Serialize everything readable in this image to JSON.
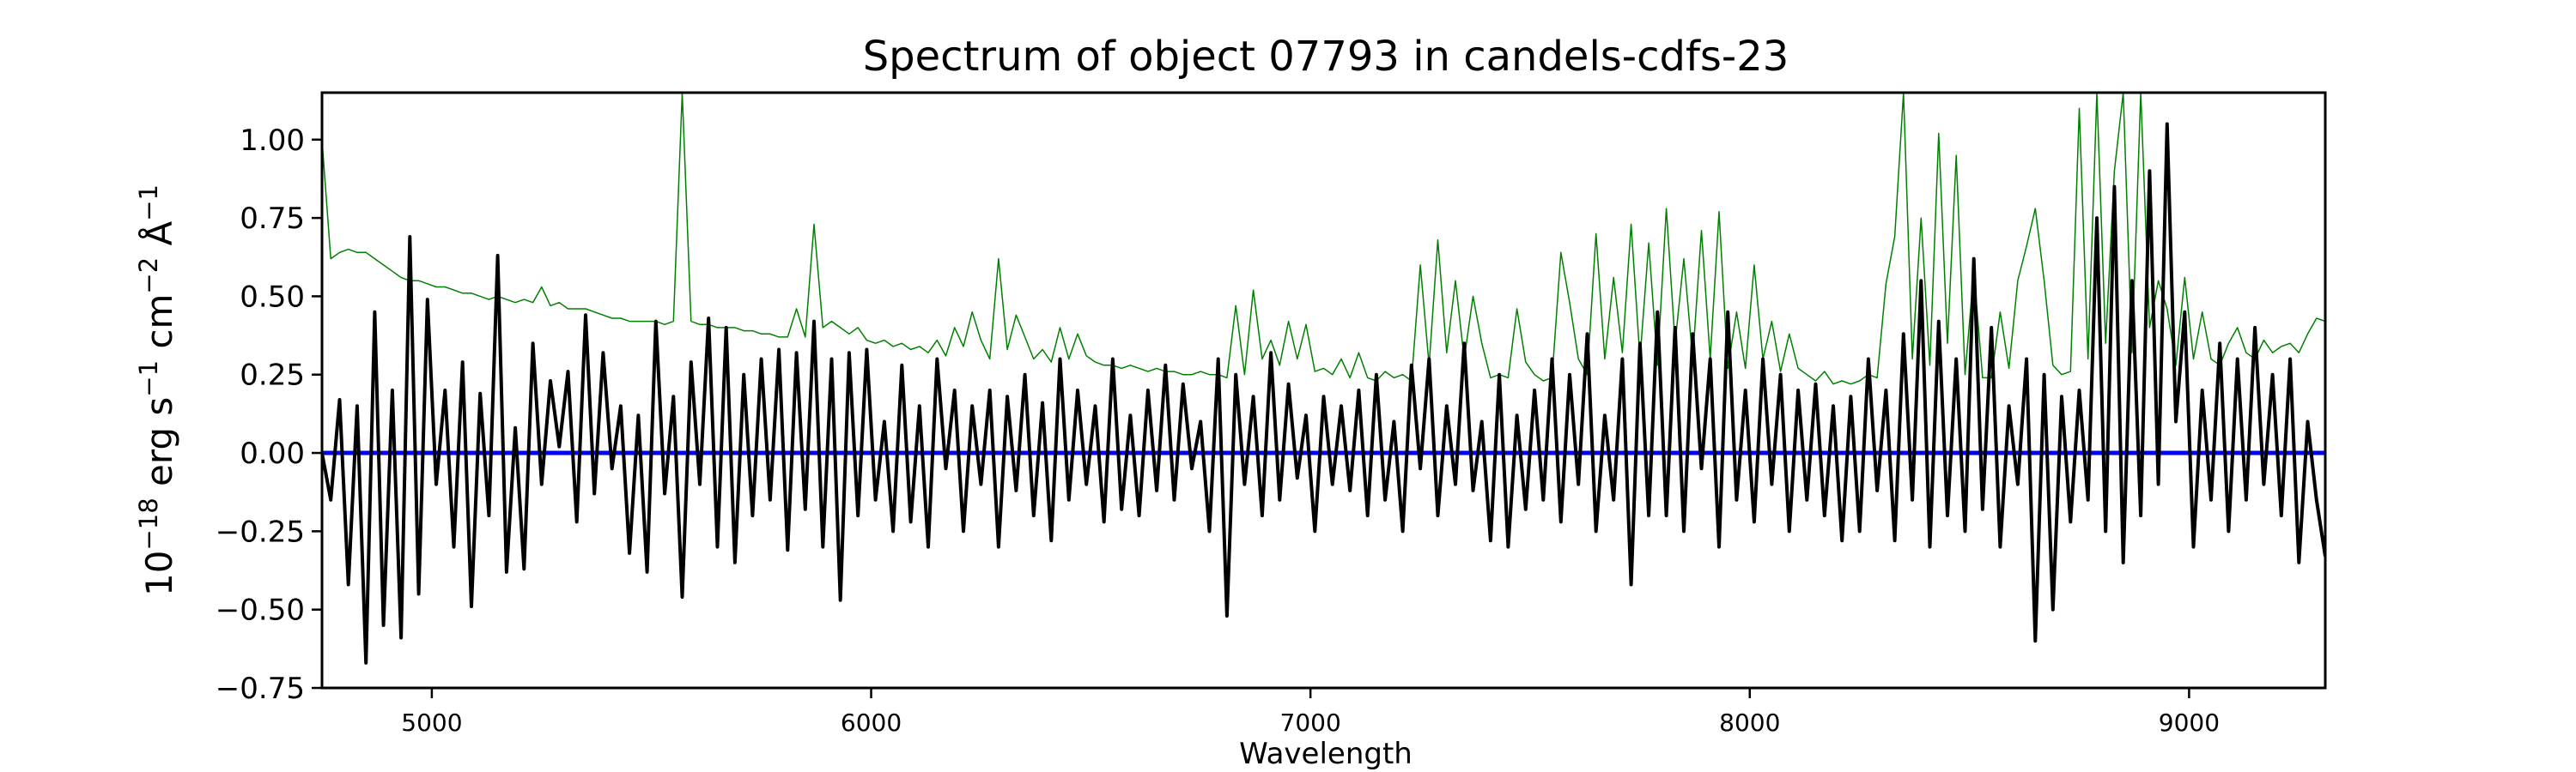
{
  "chart_data": {
    "type": "line",
    "title": "Spectrum of object 07793 in candels-cdfs-23",
    "xlabel": "Wavelength",
    "ylabel": {
      "base": "10",
      "exp": "−18",
      "parts": [
        {
          "text": " erg s",
          "sup": "−1"
        },
        {
          "text": " cm",
          "sup": "−2"
        },
        {
          "text": " Å",
          "sup": "−1"
        }
      ]
    },
    "xlim": [
      4750,
      9310
    ],
    "ylim": [
      -0.75,
      1.15
    ],
    "xticks": [
      5000,
      6000,
      7000,
      8000,
      9000
    ],
    "xtick_labels": [
      "5000",
      "6000",
      "7000",
      "8000",
      "9000"
    ],
    "yticks": [
      -0.75,
      -0.5,
      -0.25,
      0.0,
      0.25,
      0.5,
      0.75,
      1.0
    ],
    "ytick_labels": [
      "−0.75",
      "−0.50",
      "−0.25",
      "0.00",
      "0.25",
      "0.50",
      "0.75",
      "1.00"
    ],
    "grid": false,
    "colors": {
      "flux": "#000000",
      "model": "#008000",
      "zero": "#0000ff"
    },
    "zero_line": 0.0,
    "x": [
      4750,
      4770,
      4790,
      4810,
      4830,
      4850,
      4870,
      4890,
      4910,
      4930,
      4950,
      4970,
      4990,
      5010,
      5030,
      5050,
      5070,
      5090,
      5110,
      5130,
      5150,
      5170,
      5190,
      5210,
      5230,
      5250,
      5270,
      5290,
      5310,
      5330,
      5350,
      5370,
      5390,
      5410,
      5430,
      5450,
      5470,
      5490,
      5510,
      5530,
      5550,
      5570,
      5590,
      5610,
      5630,
      5650,
      5670,
      5690,
      5710,
      5730,
      5750,
      5770,
      5790,
      5810,
      5830,
      5850,
      5870,
      5890,
      5910,
      5930,
      5950,
      5970,
      5990,
      6010,
      6030,
      6050,
      6070,
      6090,
      6110,
      6130,
      6150,
      6170,
      6190,
      6210,
      6230,
      6250,
      6270,
      6290,
      6310,
      6330,
      6350,
      6370,
      6390,
      6410,
      6430,
      6450,
      6470,
      6490,
      6510,
      6530,
      6550,
      6570,
      6590,
      6610,
      6630,
      6650,
      6670,
      6690,
      6710,
      6730,
      6750,
      6770,
      6790,
      6810,
      6830,
      6850,
      6870,
      6890,
      6910,
      6930,
      6950,
      6970,
      6990,
      7010,
      7030,
      7050,
      7070,
      7090,
      7110,
      7130,
      7150,
      7170,
      7190,
      7210,
      7230,
      7250,
      7270,
      7290,
      7310,
      7330,
      7350,
      7370,
      7390,
      7410,
      7430,
      7450,
      7470,
      7490,
      7510,
      7530,
      7550,
      7570,
      7590,
      7610,
      7630,
      7650,
      7670,
      7690,
      7710,
      7730,
      7750,
      7770,
      7790,
      7810,
      7830,
      7850,
      7870,
      7890,
      7910,
      7930,
      7950,
      7970,
      7990,
      8010,
      8030,
      8050,
      8070,
      8090,
      8110,
      8130,
      8150,
      8170,
      8190,
      8210,
      8230,
      8250,
      8270,
      8290,
      8310,
      8330,
      8350,
      8370,
      8390,
      8410,
      8430,
      8450,
      8470,
      8490,
      8510,
      8530,
      8550,
      8570,
      8590,
      8610,
      8630,
      8650,
      8670,
      8690,
      8710,
      8730,
      8750,
      8770,
      8790,
      8810,
      8830,
      8850,
      8870,
      8890,
      8910,
      8930,
      8950,
      8970,
      8990,
      9010,
      9030,
      9050,
      9070,
      9090,
      9110,
      9130,
      9150,
      9170,
      9190,
      9210,
      9230,
      9250,
      9270,
      9290,
      9310
    ],
    "series": [
      {
        "key": "model",
        "values": [
          1.0,
          0.62,
          0.64,
          0.65,
          0.64,
          0.64,
          0.62,
          0.6,
          0.58,
          0.56,
          0.55,
          0.55,
          0.54,
          0.53,
          0.53,
          0.52,
          0.51,
          0.51,
          0.5,
          0.49,
          0.5,
          0.49,
          0.48,
          0.49,
          0.48,
          0.53,
          0.47,
          0.48,
          0.46,
          0.46,
          0.46,
          0.45,
          0.44,
          0.43,
          0.43,
          0.42,
          0.42,
          0.42,
          0.42,
          0.41,
          0.42,
          1.15,
          0.42,
          0.41,
          0.41,
          0.4,
          0.4,
          0.4,
          0.39,
          0.39,
          0.38,
          0.38,
          0.37,
          0.37,
          0.46,
          0.37,
          0.73,
          0.4,
          0.42,
          0.4,
          0.38,
          0.4,
          0.36,
          0.35,
          0.36,
          0.34,
          0.35,
          0.33,
          0.34,
          0.32,
          0.36,
          0.31,
          0.4,
          0.34,
          0.45,
          0.36,
          0.3,
          0.62,
          0.33,
          0.44,
          0.37,
          0.3,
          0.33,
          0.29,
          0.4,
          0.3,
          0.38,
          0.31,
          0.29,
          0.28,
          0.28,
          0.27,
          0.28,
          0.27,
          0.26,
          0.27,
          0.26,
          0.26,
          0.25,
          0.25,
          0.26,
          0.25,
          0.25,
          0.24,
          0.47,
          0.25,
          0.52,
          0.3,
          0.36,
          0.28,
          0.42,
          0.3,
          0.41,
          0.26,
          0.27,
          0.25,
          0.3,
          0.24,
          0.32,
          0.24,
          0.23,
          0.26,
          0.24,
          0.25,
          0.23,
          0.6,
          0.28,
          0.68,
          0.32,
          0.55,
          0.3,
          0.5,
          0.35,
          0.24,
          0.25,
          0.24,
          0.46,
          0.29,
          0.25,
          0.23,
          0.24,
          0.64,
          0.48,
          0.3,
          0.25,
          0.7,
          0.3,
          0.56,
          0.32,
          0.73,
          0.3,
          0.67,
          0.28,
          0.78,
          0.35,
          0.62,
          0.3,
          0.71,
          0.3,
          0.77,
          0.27,
          0.45,
          0.27,
          0.6,
          0.3,
          0.42,
          0.26,
          0.38,
          0.27,
          0.25,
          0.23,
          0.26,
          0.22,
          0.23,
          0.22,
          0.23,
          0.25,
          0.24,
          0.54,
          0.69,
          1.15,
          0.3,
          0.75,
          0.28,
          1.02,
          0.35,
          0.95,
          0.25,
          0.58,
          0.24,
          0.24,
          0.45,
          0.27,
          0.55,
          0.66,
          0.78,
          0.55,
          0.28,
          0.25,
          0.26,
          1.1,
          0.3,
          1.15,
          0.35,
          0.9,
          1.15,
          0.32,
          1.15,
          0.4,
          0.55,
          0.46,
          0.28,
          0.56,
          0.3,
          0.45,
          0.3,
          0.28,
          0.35,
          0.4,
          0.32,
          0.3,
          0.36,
          0.32,
          0.34,
          0.35,
          0.32,
          0.38,
          0.43,
          0.42
        ]
      },
      {
        "key": "flux",
        "values": [
          0.0,
          -0.15,
          0.17,
          -0.42,
          0.15,
          -0.67,
          0.45,
          -0.55,
          0.2,
          -0.59,
          0.69,
          -0.45,
          0.49,
          -0.1,
          0.2,
          -0.3,
          0.29,
          -0.49,
          0.19,
          -0.2,
          0.63,
          -0.38,
          0.08,
          -0.37,
          0.35,
          -0.1,
          0.23,
          0.02,
          0.26,
          -0.22,
          0.44,
          -0.13,
          0.32,
          -0.05,
          0.15,
          -0.32,
          0.12,
          -0.38,
          0.42,
          -0.13,
          0.18,
          -0.46,
          0.29,
          -0.1,
          0.43,
          -0.3,
          0.4,
          -0.35,
          0.25,
          -0.2,
          0.3,
          -0.15,
          0.33,
          -0.31,
          0.32,
          -0.18,
          0.42,
          -0.3,
          0.3,
          -0.47,
          0.32,
          -0.2,
          0.33,
          -0.15,
          0.1,
          -0.25,
          0.28,
          -0.22,
          0.15,
          -0.3,
          0.3,
          -0.05,
          0.2,
          -0.25,
          0.15,
          -0.1,
          0.2,
          -0.3,
          0.18,
          -0.12,
          0.25,
          -0.2,
          0.16,
          -0.28,
          0.3,
          -0.15,
          0.2,
          -0.1,
          0.15,
          -0.22,
          0.3,
          -0.18,
          0.12,
          -0.2,
          0.2,
          -0.12,
          0.28,
          -0.15,
          0.22,
          -0.05,
          0.1,
          -0.25,
          0.3,
          -0.52,
          0.25,
          -0.1,
          0.18,
          -0.2,
          0.32,
          -0.15,
          0.22,
          -0.08,
          0.12,
          -0.25,
          0.18,
          -0.1,
          0.15,
          -0.12,
          0.2,
          -0.2,
          0.25,
          -0.15,
          0.1,
          -0.25,
          0.28,
          -0.05,
          0.3,
          -0.2,
          0.15,
          -0.1,
          0.35,
          -0.12,
          0.1,
          -0.28,
          0.25,
          -0.3,
          0.12,
          -0.18,
          0.2,
          -0.15,
          0.3,
          -0.22,
          0.25,
          -0.1,
          0.38,
          -0.25,
          0.12,
          -0.15,
          0.3,
          -0.42,
          0.35,
          -0.2,
          0.45,
          -0.2,
          0.4,
          -0.25,
          0.38,
          -0.05,
          0.3,
          -0.3,
          0.45,
          -0.15,
          0.2,
          -0.22,
          0.3,
          -0.1,
          0.25,
          -0.25,
          0.2,
          -0.15,
          0.22,
          -0.2,
          0.15,
          -0.28,
          0.18,
          -0.25,
          0.3,
          -0.12,
          0.2,
          -0.28,
          0.38,
          -0.15,
          0.55,
          -0.3,
          0.42,
          -0.2,
          0.3,
          -0.25,
          0.62,
          -0.18,
          0.4,
          -0.3,
          0.15,
          -0.1,
          0.3,
          -0.6,
          0.25,
          -0.5,
          0.18,
          -0.22,
          0.2,
          -0.15,
          0.75,
          -0.25,
          0.85,
          -0.35,
          0.55,
          -0.2,
          0.9,
          -0.1,
          1.05,
          0.1,
          0.45,
          -0.3,
          0.2,
          -0.15,
          0.35,
          -0.25,
          0.3,
          -0.15,
          0.4,
          -0.1,
          0.25,
          -0.2,
          0.3,
          -0.35,
          0.1,
          -0.15,
          -0.33
        ]
      }
    ]
  }
}
